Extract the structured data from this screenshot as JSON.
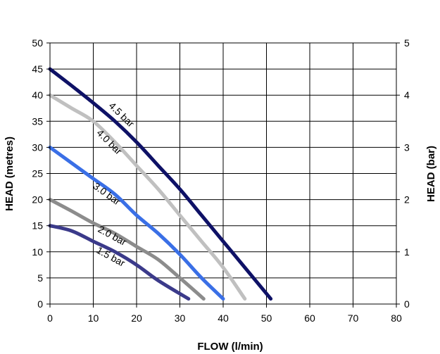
{
  "chart_data": {
    "type": "line",
    "xlabel": "FLOW (l/min)",
    "ylabel": "HEAD (metres)",
    "y2label": "HEAD (bar)",
    "xlim": [
      0,
      80
    ],
    "ylim": [
      0,
      50
    ],
    "y2lim": [
      0,
      5
    ],
    "x_ticks": [
      "0",
      "10",
      "20",
      "30",
      "40",
      "50",
      "60",
      "70",
      "80"
    ],
    "y_ticks": [
      "0",
      "5",
      "10",
      "15",
      "20",
      "25",
      "30",
      "35",
      "40",
      "45",
      "50"
    ],
    "y2_ticks": [
      "0",
      "1",
      "2",
      "3",
      "4",
      "5"
    ],
    "grid": true,
    "series": [
      {
        "name": "4.5 bar",
        "color": "#0e1166",
        "points": [
          [
            0,
            45
          ],
          [
            5,
            41.8
          ],
          [
            10,
            38.5
          ],
          [
            15,
            35
          ],
          [
            20,
            31
          ],
          [
            25,
            26.5
          ],
          [
            30,
            22
          ],
          [
            35,
            17
          ],
          [
            40,
            12
          ],
          [
            45,
            7
          ],
          [
            51,
            1
          ]
        ]
      },
      {
        "name": "4.0 bar",
        "color": "#c0c0c0",
        "points": [
          [
            0,
            40
          ],
          [
            5,
            37.5
          ],
          [
            10,
            35
          ],
          [
            15,
            31
          ],
          [
            20,
            26.5
          ],
          [
            25,
            22
          ],
          [
            30,
            17
          ],
          [
            35,
            12
          ],
          [
            40,
            7
          ],
          [
            45,
            1
          ]
        ]
      },
      {
        "name": "3.0 bar",
        "color": "#3a6fe6",
        "points": [
          [
            0,
            30
          ],
          [
            5,
            27
          ],
          [
            10,
            24
          ],
          [
            15,
            21
          ],
          [
            20,
            17
          ],
          [
            25,
            13.5
          ],
          [
            30,
            9.5
          ],
          [
            35,
            5
          ],
          [
            40,
            1
          ]
        ]
      },
      {
        "name": "2.0 bar",
        "color": "#8c8c8c",
        "points": [
          [
            0,
            20
          ],
          [
            5,
            17.8
          ],
          [
            10,
            15.5
          ],
          [
            15,
            13.5
          ],
          [
            20,
            11
          ],
          [
            25,
            8.5
          ],
          [
            30,
            5
          ],
          [
            35.5,
            1
          ]
        ]
      },
      {
        "name": "1.5 bar",
        "color": "#3b3a8a",
        "points": [
          [
            0,
            15
          ],
          [
            5,
            14
          ],
          [
            10,
            12
          ],
          [
            15,
            10
          ],
          [
            20,
            7.5
          ],
          [
            25,
            4.5
          ],
          [
            32,
            1
          ]
        ]
      }
    ]
  }
}
